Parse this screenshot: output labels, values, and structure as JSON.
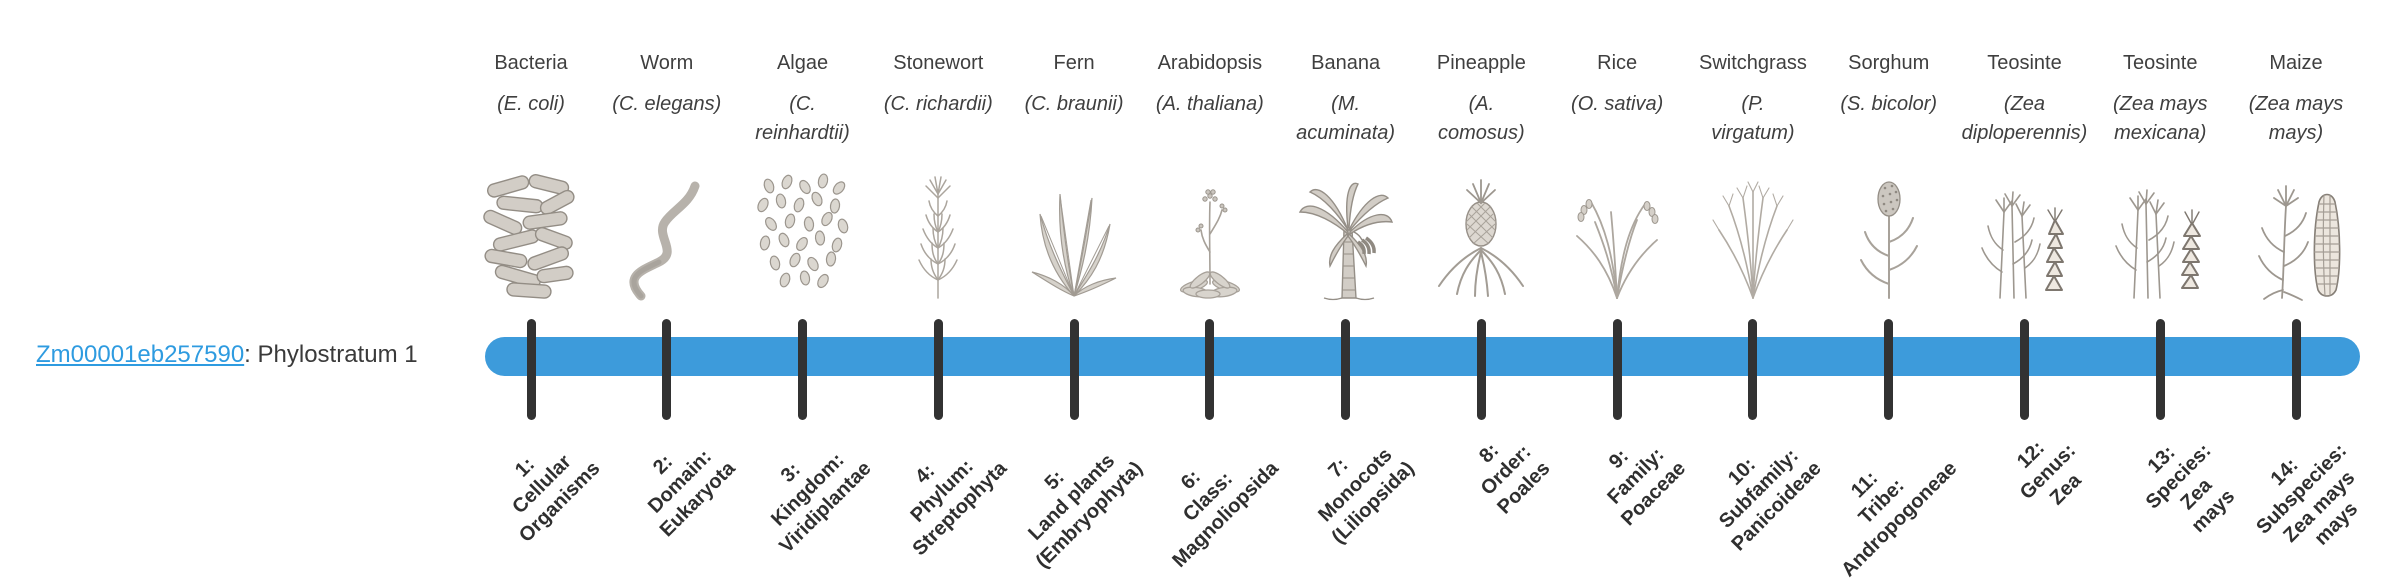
{
  "page": {
    "background": "#ffffff"
  },
  "gene_label": {
    "link_text": "Zm00001eb257590",
    "suffix": ": Phylostratum 1",
    "link_color": "#2e9be0",
    "text_color": "#3a3a3a"
  },
  "timeline": {
    "bar_color": "#3d9bdb",
    "tick_color": "#323232",
    "tick_count": 14
  },
  "stages": [
    {
      "num": "1",
      "name": "Bacteria",
      "sci": "(E. coli)",
      "illustration": "bacteria-illustration",
      "tick_label": "1:\nCellular\nOrganisms"
    },
    {
      "num": "2",
      "name": "Worm",
      "sci": "(C. elegans)",
      "illustration": "worm-illustration",
      "tick_label": "2:\nDomain:\nEukaryota"
    },
    {
      "num": "3",
      "name": "Algae",
      "sci": "(C.\nreinhardtii)",
      "illustration": "algae-illustration",
      "tick_label": "3:\nKingdom:\nViridiplantae"
    },
    {
      "num": "4",
      "name": "Stonewort",
      "sci": "(C. richardii)",
      "illustration": "stonewort-illustration",
      "tick_label": "4:\nPhylum:\nStreptophyta"
    },
    {
      "num": "5",
      "name": "Fern",
      "sci": "(C. braunii)",
      "illustration": "fern-illustration",
      "tick_label": "5:\nLand plants\n(Embryophyta)"
    },
    {
      "num": "6",
      "name": "Arabidopsis",
      "sci": "(A. thaliana)",
      "illustration": "arabidopsis-illustration",
      "tick_label": "6:\nClass:\nMagnoliopsida"
    },
    {
      "num": "7",
      "name": "Banana",
      "sci": "(M.\nacuminata)",
      "illustration": "banana-illustration",
      "tick_label": "7:\nMonocots\n(Liliopsida)"
    },
    {
      "num": "8",
      "name": "Pineapple",
      "sci": "(A.\ncomosus)",
      "illustration": "pineapple-illustration",
      "tick_label": "8:\nOrder:\nPoales"
    },
    {
      "num": "9",
      "name": "Rice",
      "sci": "(O. sativa)",
      "illustration": "rice-illustration",
      "tick_label": "9:\nFamily:\nPoaceae"
    },
    {
      "num": "10",
      "name": "Switchgrass",
      "sci": "(P.\nvirgatum)",
      "illustration": "switchgrass-illustration",
      "tick_label": "10:\nSubfamily:\nPanicoideae"
    },
    {
      "num": "11",
      "name": "Sorghum",
      "sci": "(S. bicolor)",
      "illustration": "sorghum-illustration",
      "tick_label": "11:\nTribe:\nAndropogoneae"
    },
    {
      "num": "12",
      "name": "Teosinte",
      "sci": "(Zea\ndiploperennis)",
      "illustration": "teosinte-diploperennis-illustration",
      "tick_label": "12:\nGenus:\nZea"
    },
    {
      "num": "13",
      "name": "Teosinte",
      "sci": "(Zea mays\nmexicana)",
      "illustration": "teosinte-mexicana-illustration",
      "tick_label": "13:\nSpecies:\nZea\nmays"
    },
    {
      "num": "14",
      "name": "Maize",
      "sci": "(Zea mays\nmays)",
      "illustration": "maize-illustration",
      "tick_label": "14:\nSubspecies:\nZea mays\nmays"
    }
  ]
}
